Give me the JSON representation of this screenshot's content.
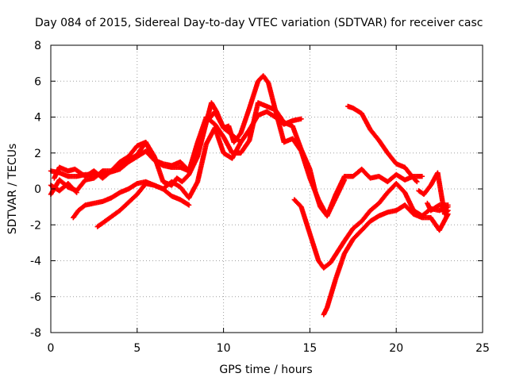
{
  "chart_data": {
    "type": "scatter",
    "title": "Day 084 of 2015, Sidereal Day-to-day VTEC variation (SDTVAR) for receiver casc",
    "xlabel": "GPS time / hours",
    "ylabel": "SDTVAR / TECUs",
    "xlim": [
      0,
      25
    ],
    "ylim": [
      -8,
      8
    ],
    "x_ticks": [
      "0",
      "5",
      "10",
      "15",
      "20",
      "25"
    ],
    "y_ticks": [
      "-8",
      "-6",
      "-4",
      "-2",
      "0",
      "2",
      "4",
      "6",
      "8"
    ],
    "grid": true,
    "legend": "none",
    "marker": "plus",
    "series": [
      {
        "x": [
          0,
          0.5,
          1,
          1.5,
          2,
          3,
          4,
          4.5,
          5,
          5.5,
          6,
          6.5,
          7,
          7.5,
          8,
          8.5,
          9,
          9.3,
          9.6,
          10,
          10.5,
          11,
          11.5,
          12,
          12.5,
          13,
          13.5,
          14,
          14.5
        ],
        "values": [
          1,
          0.9,
          0.7,
          0.7,
          0.8,
          0.8,
          1.1,
          1.5,
          1.8,
          2.1,
          1.6,
          1.3,
          1.2,
          1.2,
          1.0,
          2.0,
          3.7,
          4.8,
          4.3,
          3.4,
          3.0,
          2.6,
          3.3,
          4.1,
          4.3,
          4.0,
          3.6,
          3.8,
          3.9
        ]
      },
      {
        "x": [
          0.2,
          0.5,
          1,
          1.4,
          2,
          2.5,
          3,
          3.5,
          4,
          4.5,
          5,
          5.5,
          6,
          6.5,
          7,
          7.3,
          7.6,
          8,
          8.5,
          9,
          9.5,
          10,
          10.3,
          10.6,
          11,
          11.5,
          12,
          12.3,
          12.6,
          13,
          13.5,
          14,
          14.5,
          15,
          15.5,
          16,
          16.5,
          17,
          17.5,
          18,
          18.5,
          19,
          19.5,
          20,
          20.5,
          21,
          21.5
        ],
        "values": [
          0.6,
          1.2,
          1.0,
          1.1,
          0.7,
          1.0,
          0.6,
          1.0,
          1.3,
          1.6,
          1.9,
          2.6,
          1.8,
          0.4,
          0.2,
          0.6,
          0.4,
          0.8,
          1.8,
          3.7,
          4.3,
          3.4,
          3.5,
          2.6,
          3.1,
          4.5,
          6.0,
          6.3,
          5.9,
          4.4,
          2.6,
          2.8,
          2.1,
          0.6,
          -0.6,
          -1.5,
          -0.3,
          0.7,
          0.7,
          1.1,
          0.6,
          0.7,
          0.4,
          0.8,
          0.5,
          0.7,
          0.7
        ]
      },
      {
        "x": [
          0,
          0.5,
          1,
          1.5,
          2,
          2.5,
          3,
          3.5,
          4,
          4.5,
          5,
          5.5,
          6,
          6.5,
          7,
          7.5,
          8,
          8.5,
          9,
          9.5,
          10,
          10.5,
          11,
          11.5,
          12,
          12.5,
          13,
          13.5,
          14,
          14.5,
          15,
          15.3,
          15.6,
          16,
          16.5,
          17
        ],
        "values": [
          -0.3,
          0.5,
          0.1,
          -0.1,
          0.5,
          0.6,
          1.0,
          1.0,
          1.5,
          1.8,
          2.4,
          2.6,
          1.6,
          1.4,
          1.3,
          1.5,
          1.0,
          2.6,
          4.0,
          3.6,
          2.9,
          2.0,
          2.0,
          2.7,
          4.8,
          4.6,
          4.4,
          3.7,
          3.5,
          2.2,
          1.1,
          -0.1,
          -1.0,
          -1.5,
          -0.5,
          0.5
        ]
      },
      {
        "x": [
          0,
          0.5,
          1,
          1.5
        ],
        "values": [
          0.2,
          -0.1,
          0.3,
          -0.2
        ]
      },
      {
        "x": [
          1.3,
          1.6,
          2,
          2.5,
          3,
          3.5,
          4,
          4.5,
          5,
          5.5,
          6,
          6.5,
          7,
          7.5,
          8
        ],
        "values": [
          -1.6,
          -1.2,
          -0.9,
          -0.8,
          -0.7,
          -0.5,
          -0.2,
          0,
          0.3,
          0.4,
          0.2,
          0.0,
          -0.4,
          -0.6,
          -0.9
        ]
      },
      {
        "x": [
          2.7,
          3,
          4,
          5,
          5.5,
          6,
          6.5,
          7,
          7.5,
          8,
          8.5,
          9,
          9.5,
          10,
          10.5,
          11
        ],
        "values": [
          -2.1,
          -1.9,
          -1.2,
          -0.3,
          0.3,
          0.2,
          0,
          0.4,
          0.1,
          -0.5,
          0.4,
          2.5,
          3.4,
          2.0,
          1.7,
          2.6
        ]
      },
      {
        "x": [
          14.1,
          14.5,
          15,
          15.5,
          15.8,
          16.2,
          16.6,
          17,
          17.5,
          18,
          18.5,
          19,
          19.5,
          20,
          20.5,
          21,
          21.5,
          22,
          22.5,
          23
        ],
        "values": [
          -0.6,
          -1.0,
          -2.5,
          -4.0,
          -4.4,
          -4.1,
          -3.5,
          -2.9,
          -2.2,
          -1.8,
          -1.2,
          -0.8,
          -0.2,
          0.3,
          -0.2,
          -1.2,
          -1.5,
          -1.1,
          -1.2,
          -1.0
        ]
      },
      {
        "x": [
          15.8,
          16,
          16.5,
          17,
          17.5,
          18,
          18.5,
          19,
          19.5,
          20,
          20.5,
          21,
          21.5,
          22,
          22.5,
          23
        ],
        "values": [
          -7.0,
          -6.6,
          -5.0,
          -3.6,
          -2.8,
          -2.3,
          -1.8,
          -1.5,
          -1.3,
          -1.2,
          -0.9,
          -1.4,
          -1.6,
          -1.6,
          -2.3,
          -1.4
        ]
      },
      {
        "x": [
          17.2,
          17.5,
          18,
          18.5,
          19,
          19.5,
          20,
          20.5,
          21,
          21.2
        ],
        "values": [
          4.6,
          4.5,
          4.2,
          3.3,
          2.7,
          2.0,
          1.4,
          1.2,
          0.6,
          0.4
        ]
      },
      {
        "x": [
          21.3,
          21.6,
          22,
          22.4,
          22.8,
          23
        ],
        "values": [
          -0.1,
          -0.3,
          0.2,
          0.9,
          -1.4,
          -1.2
        ]
      },
      {
        "x": [
          21.8,
          22,
          22.5,
          23
        ],
        "values": [
          -0.8,
          -1.2,
          -0.9,
          -0.9
        ]
      }
    ]
  },
  "colors": {
    "series": "#ff0000",
    "grid": "#a0a0a0",
    "axis": "#000000",
    "background": "#ffffff"
  }
}
